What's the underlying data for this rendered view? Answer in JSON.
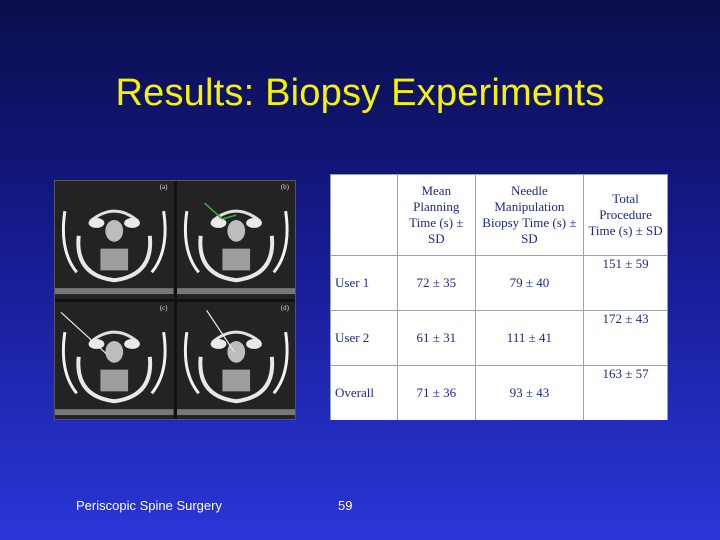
{
  "slide": {
    "title": "Results: Biopsy Experiments"
  },
  "figure": {
    "panels": [
      {
        "label": "(a)"
      },
      {
        "label": "(b)"
      },
      {
        "label": "(c)"
      },
      {
        "label": "(d)"
      }
    ]
  },
  "table": {
    "headers": [
      "",
      "Mean Planning Time (s) ± SD",
      "Needle Manipulation Biopsy Time (s) ± SD",
      "Total Procedure Time (s) ± SD"
    ],
    "rows": [
      {
        "label": "User 1",
        "planning": "72 ± 35",
        "manipulation": "79 ± 40",
        "total": "151 ± 59"
      },
      {
        "label": "User 2",
        "planning": "61 ± 31",
        "manipulation": "111 ± 41",
        "total": "172 ± 43"
      },
      {
        "label": "Overall",
        "planning": "71 ± 36",
        "manipulation": "93 ± 43",
        "total": "163 ± 57"
      }
    ]
  },
  "footer": {
    "left": "Periscopic Spine Surgery",
    "page_number": "59"
  },
  "colors": {
    "title": "#f6f200",
    "background_top": "#0a0e4a",
    "background_bottom": "#2a36d8",
    "table_text": "#1c2a86"
  }
}
